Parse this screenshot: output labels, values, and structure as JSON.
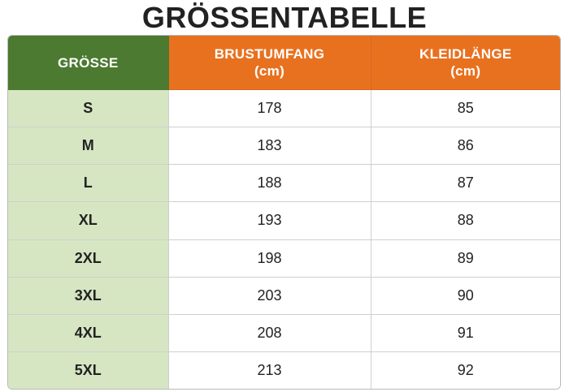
{
  "title": "GRÖSSENTABELLE",
  "columns": {
    "size": "GRÖSSE",
    "chest": {
      "label": "BRUSTUMFANG",
      "unit": "(cm)"
    },
    "length": {
      "label": "KLEIDLÄNGE",
      "unit": "(cm)"
    }
  },
  "rows": [
    {
      "size": "S",
      "chest": "178",
      "length": "85"
    },
    {
      "size": "M",
      "chest": "183",
      "length": "86"
    },
    {
      "size": "L",
      "chest": "188",
      "length": "87"
    },
    {
      "size": "XL",
      "chest": "193",
      "length": "88"
    },
    {
      "size": "2XL",
      "chest": "198",
      "length": "89"
    },
    {
      "size": "3XL",
      "chest": "203",
      "length": "90"
    },
    {
      "size": "4XL",
      "chest": "208",
      "length": "91"
    },
    {
      "size": "5XL",
      "chest": "213",
      "length": "92"
    }
  ],
  "colors": {
    "size_header": "#4b7a30",
    "measure_header": "#e8711f",
    "size_cell": "#d6e6c3"
  }
}
